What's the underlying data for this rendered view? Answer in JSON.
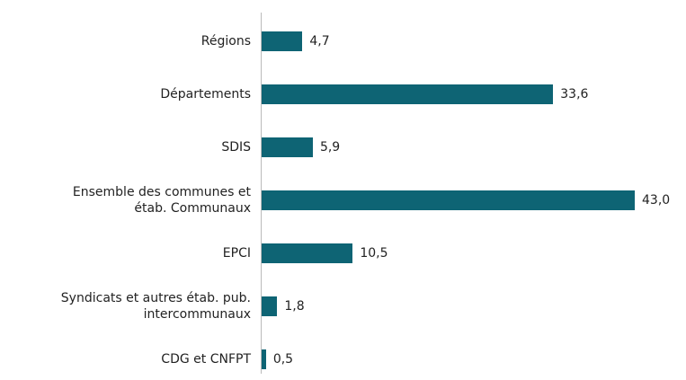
{
  "chart_data": {
    "type": "bar",
    "orientation": "horizontal",
    "categories": [
      "Régions",
      "Départements",
      "SDIS",
      "Ensemble des communes et\nétab. Communaux",
      "EPCI",
      "Syndicats et autres étab. pub.\nintercommunaux",
      "CDG et CNFPT"
    ],
    "values": [
      4.7,
      33.6,
      5.9,
      43.0,
      10.5,
      1.8,
      0.5
    ],
    "value_labels": [
      "4,7",
      "33,6",
      "5,9",
      "43,0",
      "10,5",
      "1,8",
      "0,5"
    ],
    "color": "#0e6474"
  }
}
